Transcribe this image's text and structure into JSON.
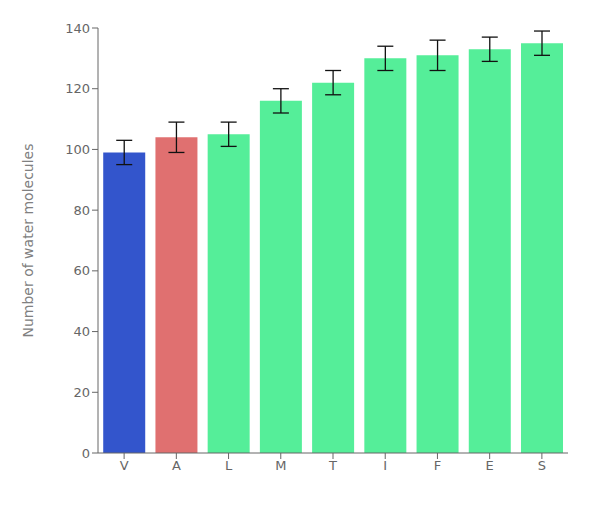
{
  "chart_data": {
    "type": "bar",
    "categories": [
      "V",
      "A",
      "L",
      "M",
      "T",
      "I",
      "F",
      "E",
      "S"
    ],
    "values": [
      99,
      104,
      105,
      116,
      122,
      130,
      131,
      133,
      135
    ],
    "errors": [
      4,
      5,
      4,
      4,
      4,
      4,
      5,
      4,
      4
    ],
    "colors": [
      "#3355cc",
      "#e07070",
      "#55ee99",
      "#55ee99",
      "#55ee99",
      "#55ee99",
      "#55ee99",
      "#55ee99",
      "#55ee99"
    ],
    "ylabel": "Number of water molecules",
    "ylim": [
      0,
      140
    ],
    "yticks": [
      0,
      20,
      40,
      60,
      80,
      100,
      120,
      140
    ]
  }
}
